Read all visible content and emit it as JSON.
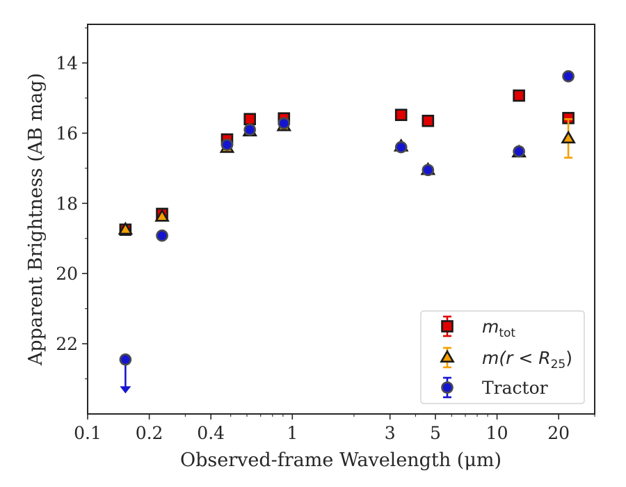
{
  "chart_data": {
    "type": "scatter",
    "xlabel": "Observed-frame Wavelength (μm)",
    "ylabel": "Apparent Brightness (AB mag)",
    "x_scale": "log",
    "xlim": [
      0.1,
      30
    ],
    "ylim": [
      24.0,
      12.9
    ],
    "y_inverted": true,
    "grid": false,
    "legend_position": "lower right",
    "x_ticks": [
      0.1,
      0.2,
      0.4,
      1,
      3,
      5,
      10,
      20
    ],
    "x_tick_labels": [
      "0.1",
      "0.2",
      "0.4",
      "1",
      "3",
      "5",
      "10",
      "20"
    ],
    "y_ticks": [
      14,
      16,
      18,
      20,
      22
    ],
    "y_tick_labels": [
      "14",
      "16",
      "18",
      "20",
      "22"
    ],
    "series": [
      {
        "name": "m_tot",
        "label_main": "m",
        "label_sub": "tot",
        "marker": "square",
        "color": "#e00000",
        "edge": "#1a1a1a",
        "points": [
          {
            "x": 0.153,
            "y": 18.75
          },
          {
            "x": 0.231,
            "y": 18.3
          },
          {
            "x": 0.48,
            "y": 16.18
          },
          {
            "x": 0.62,
            "y": 15.6
          },
          {
            "x": 0.91,
            "y": 15.58
          },
          {
            "x": 3.4,
            "y": 15.48
          },
          {
            "x": 4.6,
            "y": 15.65
          },
          {
            "x": 12.8,
            "y": 14.93
          },
          {
            "x": 22.3,
            "y": 15.57,
            "err": 0.12
          }
        ]
      },
      {
        "name": "m(r < R25)",
        "label_main": "m(r < R",
        "label_sub": "25",
        "label_end": ")",
        "marker": "triangle",
        "color": "#f5a000",
        "edge": "#1a1a1a",
        "points": [
          {
            "x": 0.153,
            "y": 18.75
          },
          {
            "x": 0.231,
            "y": 18.38
          },
          {
            "x": 0.48,
            "y": 16.42
          },
          {
            "x": 0.62,
            "y": 15.95
          },
          {
            "x": 0.91,
            "y": 15.8
          },
          {
            "x": 3.4,
            "y": 16.38
          },
          {
            "x": 4.6,
            "y": 17.05
          },
          {
            "x": 12.8,
            "y": 16.55
          },
          {
            "x": 22.3,
            "y": 16.15,
            "err": 0.55
          }
        ]
      },
      {
        "name": "Tractor",
        "label_main": "Tractor",
        "marker": "circle",
        "color": "#1515d0",
        "edge": "#4a4a4a",
        "points": [
          {
            "x": 0.153,
            "y": 22.45,
            "upper_limit": true,
            "arrow_to": 23.4
          },
          {
            "x": 0.231,
            "y": 18.92
          },
          {
            "x": 0.48,
            "y": 16.33
          },
          {
            "x": 0.62,
            "y": 15.9
          },
          {
            "x": 0.91,
            "y": 15.72
          },
          {
            "x": 3.4,
            "y": 16.4
          },
          {
            "x": 4.6,
            "y": 17.05
          },
          {
            "x": 12.8,
            "y": 16.52
          },
          {
            "x": 22.3,
            "y": 14.38
          }
        ]
      }
    ]
  }
}
